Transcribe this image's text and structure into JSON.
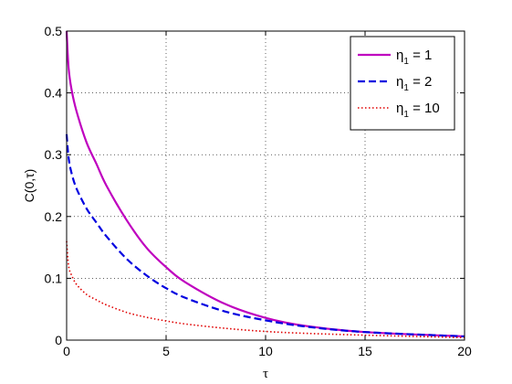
{
  "chart_data": {
    "type": "line",
    "title": "",
    "xlabel": "τ",
    "ylabel": "C(0,τ)",
    "xlim": [
      0,
      20
    ],
    "ylim": [
      0,
      0.5
    ],
    "x_ticks": [
      "0",
      "5",
      "10",
      "15",
      "20"
    ],
    "y_ticks": [
      "0",
      "0.1",
      "0.2",
      "0.3",
      "0.4",
      "0.5"
    ],
    "x_tick_values": [
      0,
      5,
      10,
      15,
      20
    ],
    "y_tick_values": [
      0,
      0.1,
      0.2,
      0.3,
      0.4,
      0.5
    ],
    "grid": true,
    "legend_position": "top-right",
    "series": [
      {
        "name": "η1 = 1",
        "name_base": "η",
        "name_sub": "1",
        "name_suffix": " = 1",
        "color": "#bf00bf",
        "style": "solid",
        "x": [
          0,
          0.1,
          0.25,
          0.5,
          1,
          1.5,
          2,
          3,
          4,
          5,
          6,
          8,
          10,
          12,
          15,
          20
        ],
        "y": [
          0.5,
          0.44,
          0.405,
          0.37,
          0.32,
          0.285,
          0.25,
          0.195,
          0.15,
          0.118,
          0.093,
          0.058,
          0.036,
          0.023,
          0.013,
          0.006
        ]
      },
      {
        "name": "η1 = 2",
        "name_base": "η",
        "name_sub": "1",
        "name_suffix": " = 2",
        "color": "#0000e0",
        "style": "dashed",
        "x": [
          0,
          0.1,
          0.25,
          0.5,
          1,
          1.5,
          2,
          3,
          4,
          5,
          6,
          8,
          10,
          12,
          15,
          20
        ],
        "y": [
          0.333,
          0.295,
          0.27,
          0.245,
          0.213,
          0.19,
          0.168,
          0.132,
          0.105,
          0.084,
          0.068,
          0.046,
          0.032,
          0.022,
          0.013,
          0.006
        ]
      },
      {
        "name": "η1 = 10",
        "name_base": "η",
        "name_sub": "1",
        "name_suffix": " = 10",
        "color": "#e00000",
        "style": "dotted",
        "x": [
          0,
          0.1,
          0.25,
          0.5,
          1,
          1.5,
          2,
          3,
          4,
          5,
          6,
          8,
          10,
          12,
          15,
          20
        ],
        "y": [
          0.16,
          0.12,
          0.105,
          0.09,
          0.074,
          0.065,
          0.057,
          0.045,
          0.037,
          0.031,
          0.026,
          0.019,
          0.014,
          0.011,
          0.008,
          0.004
        ]
      }
    ]
  }
}
